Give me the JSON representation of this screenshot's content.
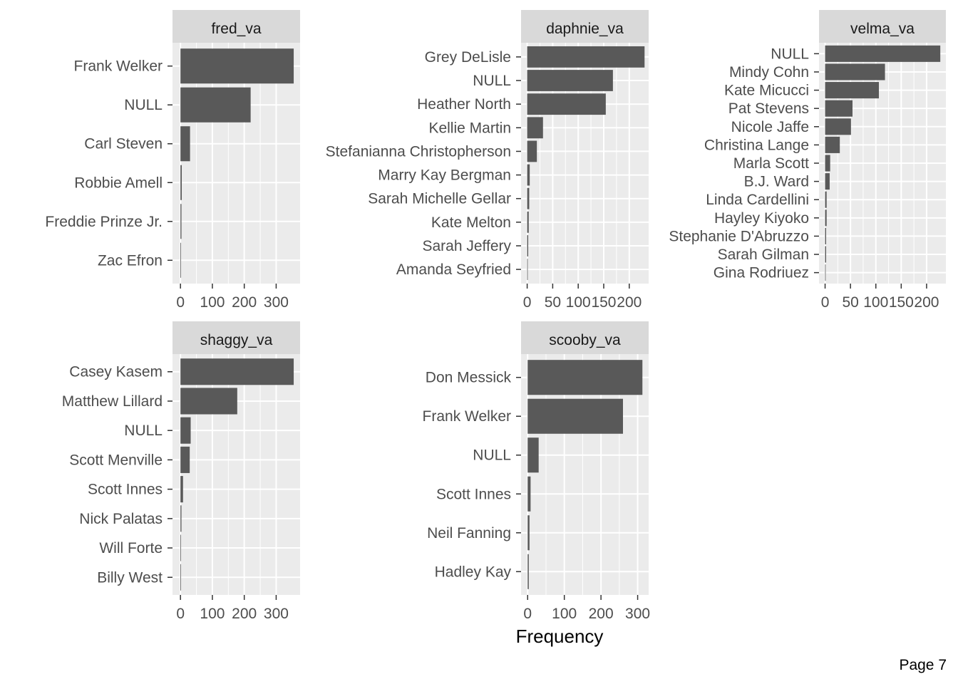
{
  "page": {
    "label": "Page 7"
  },
  "colors": {
    "panel_background": "#EBEBEB",
    "strip_background": "#D9D9D9",
    "grid": "#FFFFFF",
    "bar": "#595959",
    "text": "#4D4D4D"
  },
  "chart_data": {
    "type": "bar",
    "orientation": "horizontal",
    "xlabel": "Frequency",
    "ylabel": "",
    "grid": true,
    "facets": [
      {
        "title": "fred_va",
        "xlim": [
          -25,
          375
        ],
        "xticks": [
          0,
          100,
          200,
          300
        ],
        "categories": [
          "Frank Welker",
          "NULL",
          "Carl Steven",
          "Robbie Amell",
          "Freddie Prinze Jr.",
          "Zac Efron"
        ],
        "values": [
          355,
          220,
          30,
          4,
          3,
          1
        ]
      },
      {
        "title": "daphnie_va",
        "xlim": [
          -12,
          238
        ],
        "xticks": [
          0,
          50,
          100,
          150,
          200
        ],
        "categories": [
          "Grey DeLisle",
          "NULL",
          "Heather North",
          "Kellie Martin",
          "Stefanianna Christopherson",
          "Marry Kay Bergman",
          "Sarah Michelle Gellar",
          "Kate Melton",
          "Sarah Jeffery",
          "Amanda Seyfried"
        ],
        "values": [
          230,
          168,
          154,
          31,
          19,
          5,
          4,
          3,
          2,
          1
        ]
      },
      {
        "title": "velma_va",
        "xlim": [
          -12,
          238
        ],
        "xticks": [
          0,
          50,
          100,
          150,
          200
        ],
        "categories": [
          "NULL",
          "Mindy Cohn",
          "Kate Micucci",
          "Pat Stevens",
          "Nicole Jaffe",
          "Christina Lange",
          "Marla Scott",
          "B.J. Ward",
          "Linda Cardellini",
          "Hayley Kiyoko",
          "Stephanie D'Abruzzo",
          "Sarah Gilman",
          "Gina Rodriuez"
        ],
        "values": [
          227,
          118,
          106,
          54,
          51,
          29,
          10,
          9,
          3,
          3,
          2,
          2,
          1
        ]
      },
      {
        "title": "shaggy_va",
        "xlim": [
          -25,
          375
        ],
        "xticks": [
          0,
          100,
          200,
          300
        ],
        "categories": [
          "Casey Kasem",
          "Matthew Lillard",
          "NULL",
          "Scott Menville",
          "Scott Innes",
          "Nick Palatas",
          "Will Forte",
          "Billy West"
        ],
        "values": [
          355,
          178,
          32,
          29,
          8,
          3,
          1,
          1
        ]
      },
      {
        "title": "scooby_va",
        "xlim": [
          -18,
          330
        ],
        "xticks": [
          0,
          100,
          200,
          300
        ],
        "categories": [
          "Don Messick",
          "Frank Welker",
          "NULL",
          "Scott Innes",
          "Neil Fanning",
          "Hadley Kay"
        ],
        "values": [
          313,
          260,
          30,
          8,
          5,
          3
        ]
      }
    ]
  }
}
